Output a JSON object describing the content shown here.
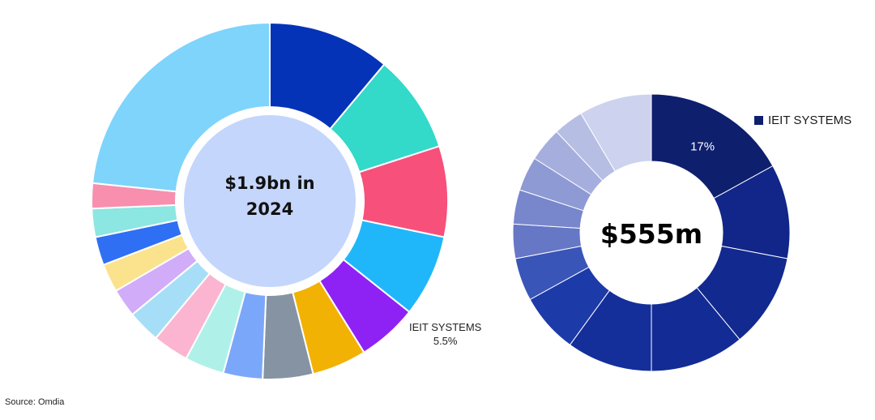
{
  "source": "Source: Omdia",
  "chart_data": [
    {
      "type": "pie",
      "center_label_lines": [
        "$1.9bn in",
        "2024"
      ],
      "slices": [
        {
          "value": 11.2,
          "color": "#0433B8"
        },
        {
          "value": 9.0,
          "color": "#33D9C9"
        },
        {
          "value": 8.3,
          "color": "#F7507A"
        },
        {
          "value": 7.5,
          "color": "#1FB7FA"
        },
        {
          "value": 5.5,
          "color": "#8E22F5"
        },
        {
          "value": 5.0,
          "color": "#F2B203"
        },
        {
          "value": 4.6,
          "color": "#8593A3"
        },
        {
          "value": 3.6,
          "color": "#7BA7FA"
        },
        {
          "value": 3.6,
          "color": "#AFF1E9"
        },
        {
          "value": 3.3,
          "color": "#FBB5D0"
        },
        {
          "value": 3.0,
          "color": "#A7DEF7"
        },
        {
          "value": 2.6,
          "color": "#D1ACF9"
        },
        {
          "value": 2.6,
          "color": "#FBE28D"
        },
        {
          "value": 2.6,
          "color": "#2F6FF4"
        },
        {
          "value": 2.6,
          "color": "#8CE6E1"
        },
        {
          "value": 2.3,
          "color": "#F88FAF"
        },
        {
          "value": 23.6,
          "color": "#7ED4FB"
        }
      ],
      "annotation": {
        "label": "IEIT SYSTEMS",
        "value": "5.5%"
      }
    },
    {
      "type": "pie",
      "center_label": "$555m",
      "legend": [
        {
          "label": "IEIT SYSTEMS",
          "color": "#0E1F6E"
        }
      ],
      "slices": [
        {
          "value": 17,
          "label": "17%",
          "color": "#0E1F6E"
        },
        {
          "value": 11,
          "color": "#112688"
        },
        {
          "value": 11,
          "color": "#12298F"
        },
        {
          "value": 11,
          "color": "#132C95"
        },
        {
          "value": 10,
          "color": "#142F9A"
        },
        {
          "value": 7,
          "color": "#1C3AA8"
        },
        {
          "value": 5,
          "color": "#3A55B8"
        },
        {
          "value": 4,
          "color": "#6677C6"
        },
        {
          "value": 4,
          "color": "#7887CC"
        },
        {
          "value": 4,
          "color": "#8E9AD4"
        },
        {
          "value": 4,
          "color": "#A6AEDD"
        },
        {
          "value": 3.5,
          "color": "#B7BEE4"
        },
        {
          "value": 8.5,
          "color": "#CDD2EE"
        }
      ]
    }
  ]
}
